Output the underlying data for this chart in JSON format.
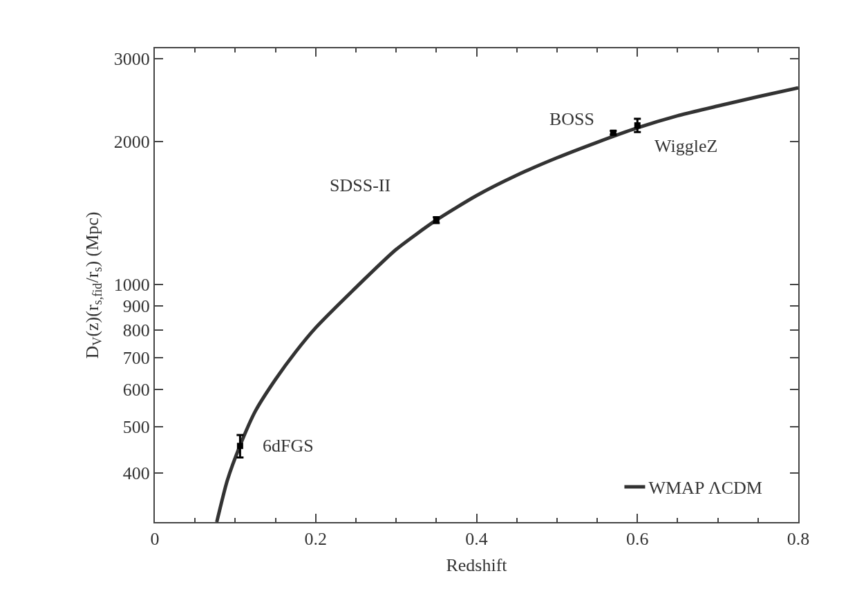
{
  "chart_data": {
    "type": "line",
    "xlabel": "Redshift",
    "ylabel": "D$_{V}$(z)(r$_{s,fid}$/r$_{s}$) (Mpc)",
    "log": "y",
    "xlim": [
      0,
      0.8
    ],
    "ylim": [
      315,
      3150
    ],
    "xticks": [
      0,
      0.2,
      0.4,
      0.6,
      0.8
    ],
    "yticks": [
      400,
      500,
      600,
      700,
      800,
      900,
      1000,
      2000,
      3000
    ],
    "legend": "bottom right",
    "series": [
      {
        "name": "WMAP ΛCDM",
        "color": "#333333",
        "line_style": "solid",
        "marker": "none",
        "x": [
          0.077,
          0.09,
          0.106,
          0.125,
          0.15,
          0.175,
          0.2,
          0.25,
          0.3,
          0.35,
          0.4,
          0.45,
          0.5,
          0.55,
          0.6,
          0.65,
          0.7,
          0.75,
          0.8
        ],
        "values": [
          315,
          385,
          457,
          540,
          630,
          720,
          810,
          985,
          1185,
          1367,
          1540,
          1700,
          1850,
          1995,
          2140,
          2270,
          2380,
          2490,
          2600
        ]
      },
      {
        "type": "scatter",
        "color": "#000000",
        "marker": "square",
        "x": [
          0.106,
          0.35,
          0.57,
          0.6
        ],
        "values": [
          456,
          1367,
          2090,
          2166
        ],
        "errors": [
          25,
          20,
          20,
          70
        ]
      }
    ],
    "annotations": [
      {
        "text": "6dFGS",
        "x": 0.106,
        "y": 456
      },
      {
        "text": "SDSS-II",
        "x": 0.35,
        "y": 1367
      },
      {
        "text": "BOSS",
        "x": 0.57,
        "y": 2090
      },
      {
        "text": "WiggleZ",
        "x": 0.6,
        "y": 2166
      }
    ]
  }
}
